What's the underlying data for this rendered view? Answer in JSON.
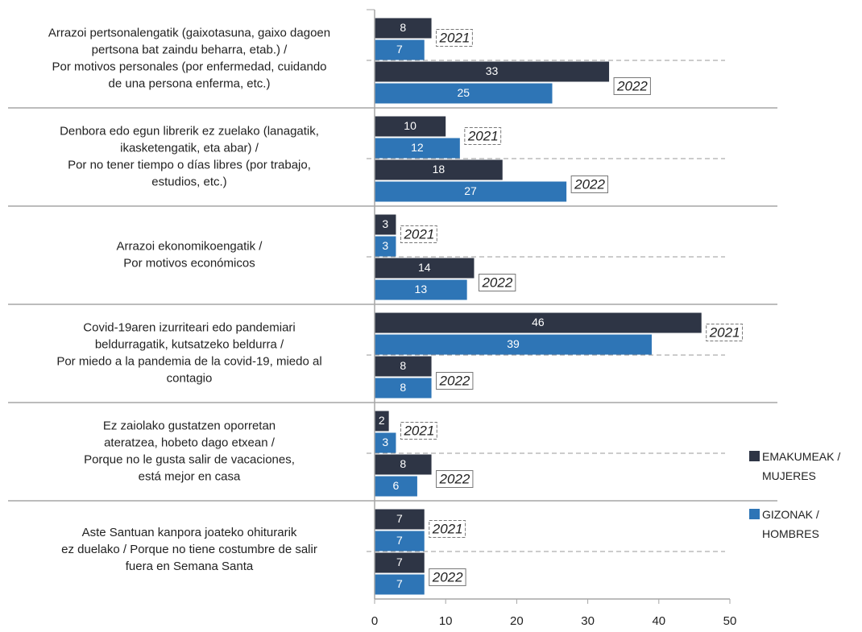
{
  "chart_data": {
    "type": "grouped-bar-horizontal",
    "categories": [
      [
        "Arrazoi pertsonalengatik (gaixotasuna, gaixo dagoen",
        "pertsona bat zaindu beharra, etab.) /",
        "Por motivos personales (por enfermedad, cuidando",
        "de una persona enferma, etc.)"
      ],
      [
        "Denbora edo egun librerik ez zuelako (lanagatik,",
        "ikasketengatik, eta abar) /",
        "Por no tener tiempo o días libres (por trabajo,",
        "estudios, etc.)"
      ],
      [
        "Arrazoi ekonomikoengatik /",
        "Por motivos económicos"
      ],
      [
        "Covid-19aren izurriteari edo pandemiari",
        "beldurragatik, kutsatzeko beldurra /",
        "Por miedo a la pandemia de la covid-19, miedo al",
        "contagio"
      ],
      [
        "Ez zaiolako gustatzen oporretan",
        "ateratzea, hobeto dago etxean /",
        "Porque no le gusta salir de vacaciones,",
        "está mejor en casa"
      ],
      [
        "Aste Santuan kanpora joateko ohiturarik",
        "ez duelako / Porque no tiene costumbre de salir",
        "fuera en Semana Santa"
      ]
    ],
    "groups": [
      "2021",
      "2022"
    ],
    "series": [
      {
        "name": "EMAKUMEAK / MUJERES",
        "color": "#2e3545",
        "values": [
          [
            8,
            33
          ],
          [
            10,
            18
          ],
          [
            3,
            14
          ],
          [
            46,
            8
          ],
          [
            2,
            8
          ],
          [
            7,
            7
          ]
        ]
      },
      {
        "name": "GIZONAK / HOMBRES",
        "color": "#2e75b6",
        "values": [
          [
            7,
            25
          ],
          [
            12,
            27
          ],
          [
            3,
            13
          ],
          [
            39,
            8
          ],
          [
            3,
            6
          ],
          [
            7,
            7
          ]
        ]
      }
    ],
    "xlim": [
      0,
      50
    ],
    "xticks": [
      0,
      10,
      20,
      30,
      40,
      50
    ]
  }
}
